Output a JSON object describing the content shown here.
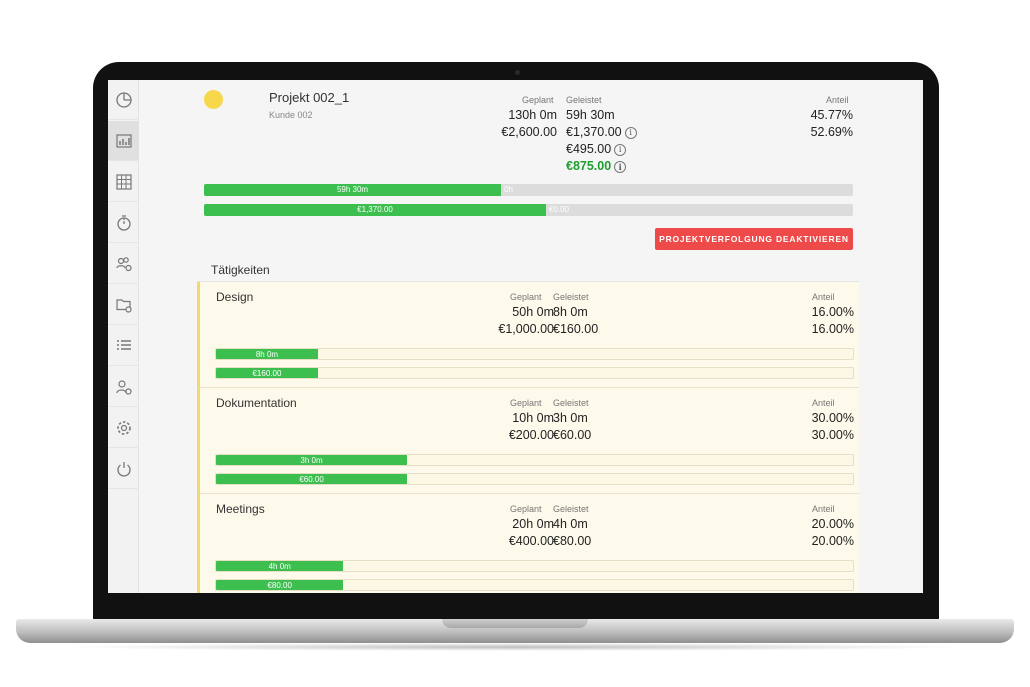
{
  "colors": {
    "accent_green": "#3cbf4f",
    "danger_red": "#ee4a4a",
    "project_dot": "#f7d84a",
    "activity_bg": "#fdf9eb"
  },
  "sidebar": {
    "items": [
      {
        "icon": "pie-chart-icon"
      },
      {
        "icon": "bar-chart-icon",
        "active": true
      },
      {
        "icon": "grid-table-icon"
      },
      {
        "icon": "stopwatch-icon"
      },
      {
        "icon": "users-settings-icon"
      },
      {
        "icon": "folder-settings-icon"
      },
      {
        "icon": "list-icon"
      },
      {
        "icon": "user-settings-icon"
      },
      {
        "icon": "gear-icon"
      },
      {
        "icon": "power-icon"
      }
    ]
  },
  "project": {
    "name": "Projekt 002_1",
    "client": "Kunde 002",
    "planned_label": "Geplant",
    "done_label": "Geleistet",
    "share_label": "Anteil",
    "planned_time": "130h 0m",
    "planned_budget": "€2,600.00",
    "done_time": "59h 30m",
    "done_budget": "€1,370.00",
    "done_extra": "€495.00",
    "done_green": "€875.00",
    "share_time": "45.77%",
    "share_budget": "52.69%",
    "info_glyph": "i",
    "bar_time": {
      "fill_label": "59h 30m",
      "rest_label": "0h",
      "fraction": 0.4577
    },
    "bar_budget": {
      "fill_label": "€1,370.00",
      "rest_label": "€0.00",
      "fraction": 0.5269
    },
    "deactivate_button": "PROJEKTVERFOLGUNG DEAKTIVIEREN"
  },
  "activities_title": "Tätigkeiten",
  "activities": [
    {
      "name": "Design",
      "planned_label": "Geplant",
      "done_label": "Geleistet",
      "share_label": "Anteil",
      "planned_time": "50h 0m",
      "planned_budget": "€1,000.00",
      "done_time": "8h 0m",
      "done_budget": "€160.00",
      "share_time": "16.00%",
      "share_budget": "16.00%",
      "bar_time_label": "8h 0m",
      "bar_budget_label": "€160.00",
      "fraction": 0.16
    },
    {
      "name": "Dokumentation",
      "planned_label": "Geplant",
      "done_label": "Geleistet",
      "share_label": "Anteil",
      "planned_time": "10h 0m",
      "planned_budget": "€200.00",
      "done_time": "3h 0m",
      "done_budget": "€60.00",
      "share_time": "30.00%",
      "share_budget": "30.00%",
      "bar_time_label": "3h 0m",
      "bar_budget_label": "€60.00",
      "fraction": 0.3
    },
    {
      "name": "Meetings",
      "planned_label": "Geplant",
      "done_label": "Geleistet",
      "share_label": "Anteil",
      "planned_time": "20h 0m",
      "planned_budget": "€400.00",
      "done_time": "4h 0m",
      "done_budget": "€80.00",
      "share_time": "20.00%",
      "share_budget": "20.00%",
      "bar_time_label": "4h 0m",
      "bar_budget_label": "€80.00",
      "fraction": 0.2
    }
  ]
}
